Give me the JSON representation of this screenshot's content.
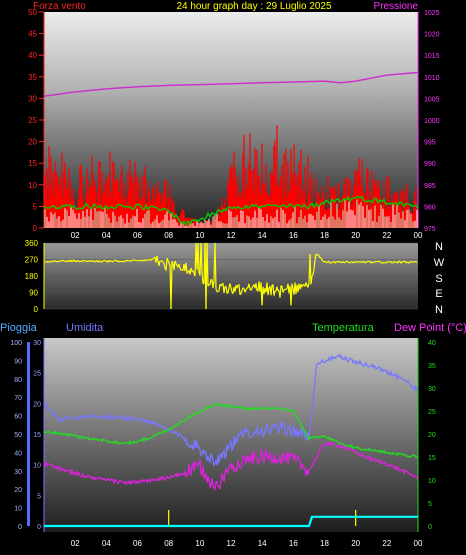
{
  "header": {
    "wind_label": "Forza vento",
    "title": "24 hour graph day : 29 Luglio 2025",
    "pressure_label": "Pressione"
  },
  "x_ticks": [
    "02",
    "04",
    "06",
    "08",
    "10",
    "12",
    "14",
    "16",
    "18",
    "20",
    "22",
    "00"
  ],
  "direction_labels": [
    "N",
    "W",
    "S",
    "E",
    "N"
  ],
  "legend": {
    "rain": "Pioggia",
    "humidity": "Umidita",
    "temperature": "Temperatura",
    "dew_point": "Dew Point (°C)"
  },
  "colors": {
    "wind": "#ff0000",
    "gust_avg": "#00cc00",
    "wind_low": "#ffffff",
    "pressure": "#cc33cc",
    "direction": "#ffff00",
    "humidity": "#7777ff",
    "temperature": "#22dd22",
    "dew_point": "#dd22dd",
    "rain": "#00ffff",
    "rain_left_axis": "#7777ff",
    "title": "#ffff00",
    "red_axis": "#ff2222",
    "magenta_axis": "#ff33ff"
  },
  "chart_data": [
    {
      "type": "area",
      "name": "wind-pressure",
      "x_unit": "hour",
      "xlim": [
        0,
        24
      ],
      "y_left": {
        "label": "Forza vento",
        "ticks": [
          0,
          5,
          10,
          15,
          20,
          25,
          30,
          35,
          40,
          45,
          50
        ],
        "ylim": [
          0,
          50
        ]
      },
      "y_right": {
        "label": "Pressione",
        "ticks": [
          975,
          980,
          985,
          990,
          995,
          1000,
          1005,
          1010,
          1015,
          1020,
          1025
        ],
        "ylim": [
          975,
          1025
        ]
      },
      "grid": false,
      "series": [
        {
          "axis": "right",
          "x": [
            0,
            2,
            4,
            6,
            8,
            10,
            12,
            14,
            16,
            18,
            19,
            20,
            22,
            24
          ],
          "values": [
            1005.5,
            1006.5,
            1007.2,
            1007.7,
            1008.0,
            1008.2,
            1008.4,
            1008.6,
            1008.8,
            1009.0,
            1008.6,
            1009.0,
            1010.4,
            1011.0
          ]
        },
        {
          "axis": "left",
          "x": [
            0,
            1,
            2,
            3,
            4,
            5,
            6,
            7,
            8,
            9,
            10,
            11,
            12,
            13,
            14,
            15,
            16,
            17,
            18,
            19,
            20,
            21,
            22,
            23,
            24
          ],
          "values": [
            12,
            14,
            9,
            11,
            12,
            11,
            10,
            9,
            7,
            3,
            1,
            2,
            11,
            15,
            13,
            16,
            13,
            11,
            8,
            8,
            11,
            10,
            8,
            7,
            6
          ]
        },
        {
          "axis": "left",
          "x": [
            0,
            2,
            4,
            6,
            8,
            9,
            10,
            12,
            14,
            16,
            17,
            18,
            20,
            22,
            24
          ],
          "values": [
            5,
            5,
            5,
            5,
            4,
            1,
            2,
            5,
            5,
            5,
            5,
            6,
            7,
            6,
            5
          ]
        }
      ]
    },
    {
      "type": "scatter",
      "name": "wind-direction",
      "x_unit": "hour",
      "xlim": [
        0,
        24
      ],
      "ylim": [
        0,
        360
      ],
      "yticks": [
        0,
        90,
        180,
        270,
        360
      ],
      "x": [
        0,
        2,
        4,
        6,
        7,
        8,
        9,
        10,
        11,
        12,
        13,
        14,
        15,
        16,
        17,
        17.5,
        18,
        20,
        22,
        24
      ],
      "values": [
        260,
        262,
        260,
        262,
        270,
        240,
        230,
        180,
        120,
        110,
        100,
        120,
        90,
        110,
        120,
        300,
        255,
        255,
        255,
        255
      ]
    },
    {
      "type": "line",
      "name": "humidity-temperature",
      "x_unit": "hour",
      "xlim": [
        0,
        24
      ],
      "y_left_rain": {
        "label": "Pioggia",
        "ticks": [
          0,
          10,
          20,
          30,
          40,
          50,
          60,
          70,
          80,
          90,
          100
        ],
        "ylim": [
          0,
          100
        ]
      },
      "y_left_hum": {
        "label": "Umidita",
        "ticks": [
          0,
          5,
          10,
          15,
          20,
          25,
          30
        ],
        "ylim": [
          0,
          30
        ]
      },
      "y_right": {
        "label": "Dew Point (°C)",
        "ticks": [
          0,
          5,
          10,
          15,
          20,
          25,
          30,
          35,
          40
        ],
        "ylim": [
          0,
          40
        ]
      },
      "series": [
        {
          "axis": "left_rain",
          "x": [
            0,
            1,
            2,
            3,
            4,
            5,
            6,
            7,
            8,
            9,
            10,
            11,
            12,
            13,
            14,
            15,
            16,
            17,
            17.5,
            18,
            19,
            20,
            21,
            22,
            23,
            24
          ],
          "values": [
            66,
            58,
            59,
            60,
            59,
            59,
            58,
            56,
            52,
            48,
            42,
            35,
            44,
            51,
            52,
            53,
            52,
            48,
            88,
            90,
            92,
            89,
            87,
            84,
            80,
            74
          ]
        },
        {
          "axis": "right",
          "x": [
            0,
            1,
            2,
            3,
            4,
            5,
            6,
            7,
            8,
            9,
            10,
            11,
            12,
            13,
            14,
            15,
            16,
            17,
            18,
            19,
            20,
            21,
            22,
            23,
            24
          ],
          "values": [
            20.4,
            20.2,
            19.5,
            19.0,
            18.5,
            18.0,
            18.3,
            19.5,
            21.0,
            23.0,
            25.0,
            26.5,
            26.0,
            25.5,
            25.5,
            25.5,
            25.0,
            19.0,
            19.5,
            18.0,
            17.0,
            16.5,
            16.0,
            15.5,
            15.0
          ]
        },
        {
          "axis": "right",
          "x": [
            0,
            1,
            2,
            3,
            4,
            5,
            6,
            7,
            8,
            9,
            10,
            11,
            12,
            13,
            14,
            15,
            16,
            17,
            18,
            19,
            20,
            21,
            22,
            23,
            24
          ],
          "values": [
            13.5,
            12.5,
            11.5,
            10.5,
            10.0,
            9.5,
            9.5,
            10.0,
            10.5,
            11.5,
            13.0,
            8.0,
            13.0,
            14.5,
            15.0,
            15.0,
            14.5,
            12.0,
            18.0,
            17.5,
            16.0,
            14.5,
            13.5,
            12.0,
            10.5
          ]
        },
        {
          "axis": "right",
          "x": [
            0,
            17,
            17.2,
            24
          ],
          "values": [
            0,
            0,
            2,
            2
          ]
        }
      ]
    }
  ]
}
